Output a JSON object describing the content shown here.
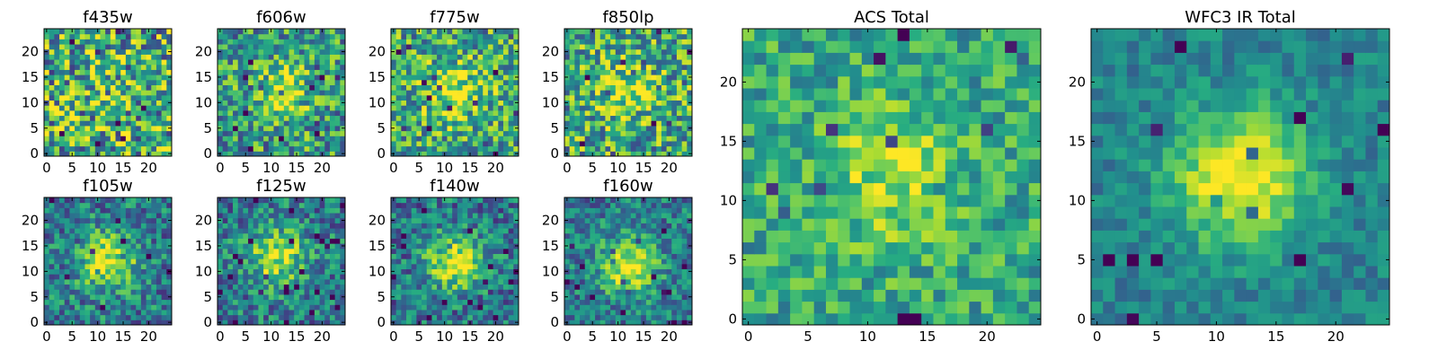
{
  "figure": {
    "colormap": "viridis",
    "grid": false,
    "legend": "none"
  },
  "chart_data": [
    {
      "type": "heatmap",
      "title": "f435w",
      "size": 25,
      "xticks": [
        0,
        5,
        10,
        15,
        20
      ],
      "yticks": [
        0,
        5,
        10,
        15,
        20
      ],
      "xlim": [
        -0.5,
        24.5
      ],
      "ylim": [
        -0.5,
        24.5
      ],
      "peak": [
        12,
        12
      ],
      "peak_strength": 0.05,
      "noise": 0.9,
      "base": 0.62,
      "seed": 11
    },
    {
      "type": "heatmap",
      "title": "f606w",
      "size": 25,
      "xticks": [
        0,
        5,
        10,
        15,
        20
      ],
      "yticks": [
        0,
        5,
        10,
        15,
        20
      ],
      "xlim": [
        -0.5,
        24.5
      ],
      "ylim": [
        -0.5,
        24.5
      ],
      "peak": [
        12,
        12
      ],
      "peak_strength": 0.35,
      "noise": 0.7,
      "base": 0.55,
      "seed": 23
    },
    {
      "type": "heatmap",
      "title": "f775w",
      "size": 25,
      "xticks": [
        0,
        5,
        10,
        15,
        20
      ],
      "yticks": [
        0,
        5,
        10,
        15,
        20
      ],
      "xlim": [
        -0.5,
        24.5
      ],
      "ylim": [
        -0.5,
        24.5
      ],
      "peak": [
        12,
        12
      ],
      "peak_strength": 0.35,
      "noise": 0.7,
      "base": 0.6,
      "seed": 37
    },
    {
      "type": "heatmap",
      "title": "f850lp",
      "size": 25,
      "xticks": [
        0,
        5,
        10,
        15,
        20
      ],
      "yticks": [
        0,
        5,
        10,
        15,
        20
      ],
      "xlim": [
        -0.5,
        24.5
      ],
      "ylim": [
        -0.5,
        24.5
      ],
      "peak": [
        12,
        12
      ],
      "peak_strength": 0.3,
      "noise": 0.75,
      "base": 0.6,
      "seed": 41
    },
    {
      "type": "heatmap",
      "title": "f105w",
      "size": 25,
      "xticks": [
        0,
        5,
        10,
        15,
        20
      ],
      "yticks": [
        0,
        5,
        10,
        15,
        20
      ],
      "xlim": [
        -0.5,
        24.5
      ],
      "ylim": [
        -0.5,
        24.5
      ],
      "peak": [
        12,
        12
      ],
      "peak_strength": 0.55,
      "noise": 0.55,
      "base": 0.42,
      "seed": 53
    },
    {
      "type": "heatmap",
      "title": "f125w",
      "size": 25,
      "xticks": [
        0,
        5,
        10,
        15,
        20
      ],
      "yticks": [
        0,
        5,
        10,
        15,
        20
      ],
      "xlim": [
        -0.5,
        24.5
      ],
      "ylim": [
        -0.5,
        24.5
      ],
      "peak": [
        11,
        13
      ],
      "peak_strength": 0.5,
      "noise": 0.55,
      "base": 0.42,
      "seed": 67
    },
    {
      "type": "heatmap",
      "title": "f140w",
      "size": 25,
      "xticks": [
        0,
        5,
        10,
        15,
        20
      ],
      "yticks": [
        0,
        5,
        10,
        15,
        20
      ],
      "xlim": [
        -0.5,
        24.5
      ],
      "ylim": [
        -0.5,
        24.5
      ],
      "peak": [
        12,
        12
      ],
      "peak_strength": 0.55,
      "noise": 0.55,
      "base": 0.4,
      "seed": 71
    },
    {
      "type": "heatmap",
      "title": "f160w",
      "size": 25,
      "xticks": [
        0,
        5,
        10,
        15,
        20
      ],
      "yticks": [
        0,
        5,
        10,
        15,
        20
      ],
      "xlim": [
        -0.5,
        24.5
      ],
      "ylim": [
        -0.5,
        24.5
      ],
      "peak": [
        12,
        11
      ],
      "peak_strength": 0.55,
      "noise": 0.5,
      "base": 0.42,
      "seed": 83
    },
    {
      "type": "heatmap",
      "title": "ACS Total",
      "size": 25,
      "xticks": [
        0,
        5,
        10,
        15,
        20
      ],
      "yticks": [
        0,
        5,
        10,
        15,
        20
      ],
      "xlim": [
        -0.5,
        24.5
      ],
      "ylim": [
        -0.5,
        24.5
      ],
      "peak": [
        12,
        12
      ],
      "peak_strength": 0.28,
      "noise": 0.45,
      "base": 0.6,
      "seed": 97
    },
    {
      "type": "heatmap",
      "title": "WFC3 IR Total",
      "size": 25,
      "xticks": [
        0,
        5,
        10,
        15,
        20
      ],
      "yticks": [
        0,
        5,
        10,
        15,
        20
      ],
      "xlim": [
        -0.5,
        24.5
      ],
      "ylim": [
        -0.5,
        24.5
      ],
      "peak": [
        12,
        12
      ],
      "peak_strength": 0.6,
      "noise": 0.28,
      "base": 0.45,
      "seed": 103
    }
  ]
}
